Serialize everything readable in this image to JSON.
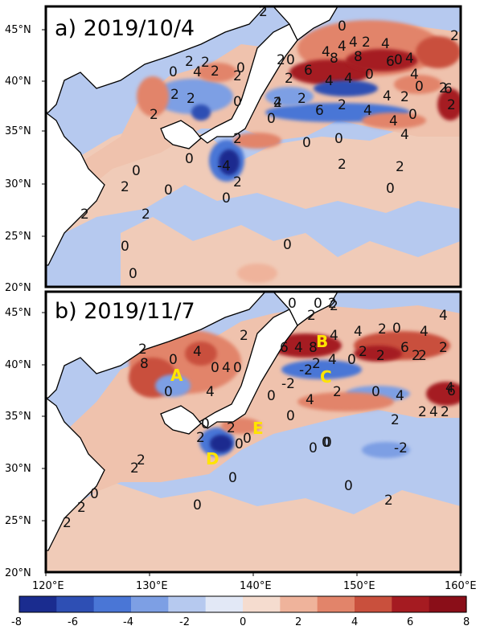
{
  "panels": [
    {
      "id": "a",
      "title": "a) 2019/10/4"
    },
    {
      "id": "b",
      "title": "b) 2019/11/7"
    }
  ],
  "axes": {
    "lat_labels": [
      "45°N",
      "40°N",
      "35°N",
      "30°N",
      "25°N",
      "20°N"
    ],
    "lon_labels": [
      "120°E",
      "130°E",
      "140°E",
      "150°E",
      "160°E"
    ]
  },
  "markers": [
    "A",
    "B",
    "C",
    "D",
    "E"
  ],
  "colorbar": {
    "ticks": [
      "-8",
      "-6",
      "-4",
      "-2",
      "0",
      "2",
      "4",
      "6",
      "8"
    ],
    "colors": [
      "#1a2c8f",
      "#2e4fb4",
      "#4a76d6",
      "#7d9fe4",
      "#b6c9ef",
      "#e2e8f6",
      "#f5dccf",
      "#efb39b",
      "#e2846a",
      "#c9503d",
      "#a51b21",
      "#8a0e18"
    ]
  },
  "contour_labels": {
    "a": [
      "2",
      "0",
      "2",
      "2",
      "4",
      "4",
      "2",
      "0",
      "4",
      "2",
      "4",
      "0",
      "2",
      "2",
      "6",
      "0",
      "0",
      "4",
      "8",
      "2",
      "8",
      "4",
      "4",
      "6",
      "2",
      "4",
      "2",
      "2",
      "4",
      "0",
      "2",
      "2",
      "4",
      "6",
      "4",
      "0",
      "6",
      "2",
      "4",
      "2",
      "2",
      "2",
      "0",
      "4",
      "4",
      "0",
      "2",
      "0",
      "0",
      "0",
      "2",
      "-4",
      "0",
      "2",
      "0",
      "0",
      "2",
      "2",
      "2",
      "0",
      "2",
      "0",
      "2",
      "0",
      "0",
      "0"
    ],
    "b": [
      "0",
      "0",
      "2",
      "2",
      "4",
      "2",
      "6",
      "4",
      "8",
      "4",
      "4",
      "2",
      "4",
      "0",
      "2",
      "0",
      "8",
      "0",
      "4",
      "4",
      "0",
      "4",
      "0",
      "6",
      "2",
      "2",
      "4",
      "2",
      "2",
      "2",
      "0",
      "-2",
      "-2",
      "2",
      "2",
      "0",
      "4",
      "4",
      "2",
      "0",
      "4",
      "0",
      "2",
      "2",
      "2",
      "4",
      "6",
      "0",
      "2",
      "2",
      "0",
      "0",
      "2",
      "2",
      "0",
      "2",
      "-2",
      "0",
      "0",
      "0",
      "2",
      "2",
      "0",
      "0",
      "0"
    ]
  }
}
